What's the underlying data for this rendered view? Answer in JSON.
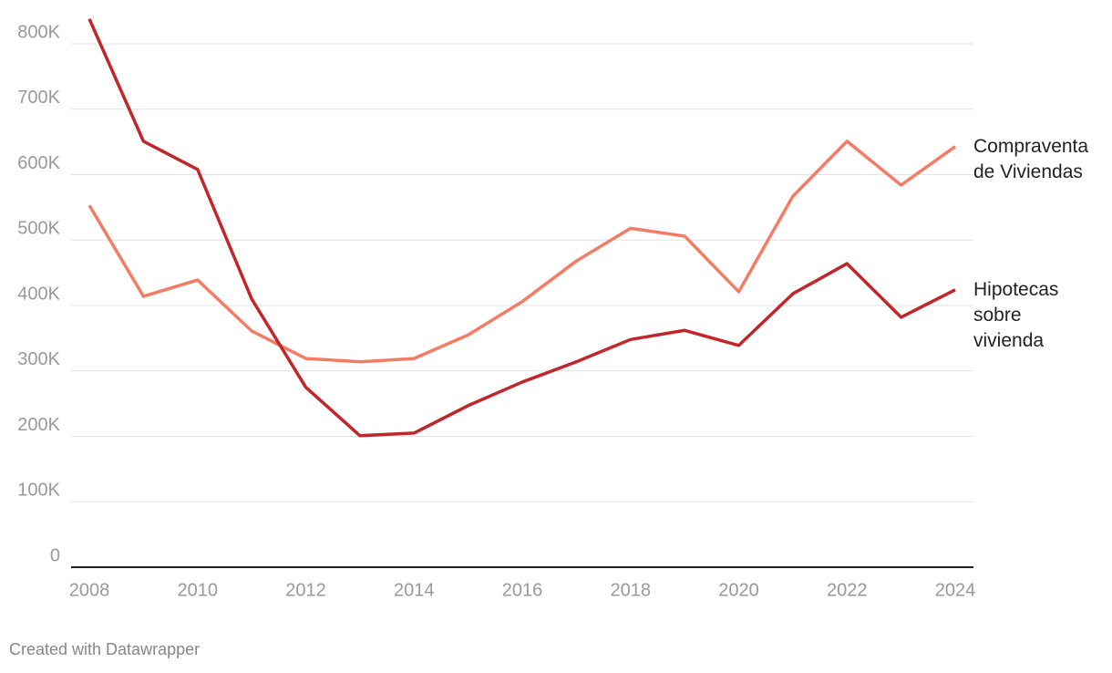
{
  "chart_data": {
    "type": "line",
    "x": [
      2008,
      2009,
      2010,
      2011,
      2012,
      2013,
      2014,
      2015,
      2016,
      2017,
      2018,
      2019,
      2020,
      2021,
      2022,
      2023,
      2024
    ],
    "series": [
      {
        "name": "Compraventa de Viviendas",
        "color": "#f47c64",
        "values": [
          553000,
          414000,
          439000,
          361000,
          319000,
          314000,
          319000,
          355000,
          406000,
          468000,
          518000,
          506000,
          421000,
          567000,
          651000,
          584000,
          643000
        ]
      },
      {
        "name": "Hipotecas sobre vivienda",
        "color": "#c0262a",
        "values": [
          838000,
          651000,
          608000,
          410000,
          275000,
          201000,
          205000,
          247000,
          283000,
          314000,
          348000,
          362000,
          339000,
          418000,
          464000,
          382000,
          424000
        ]
      }
    ],
    "xlim": [
      2008,
      2024
    ],
    "xticks": [
      2008,
      2010,
      2012,
      2014,
      2016,
      2018,
      2020,
      2022,
      2024
    ],
    "ylim": [
      0,
      800000
    ],
    "yticks": [
      0,
      {
        "value": 100000,
        "label": "100K"
      },
      {
        "value": 200000,
        "label": "200K"
      },
      {
        "value": 300000,
        "label": "300K"
      },
      {
        "value": 400000,
        "label": "400K"
      },
      {
        "value": 500000,
        "label": "500K"
      },
      {
        "value": 600000,
        "label": "600K"
      },
      {
        "value": 700000,
        "label": "700K"
      },
      {
        "value": 800000,
        "label": "800K"
      }
    ],
    "grid": true,
    "footer": "Created with Datawrapper"
  }
}
